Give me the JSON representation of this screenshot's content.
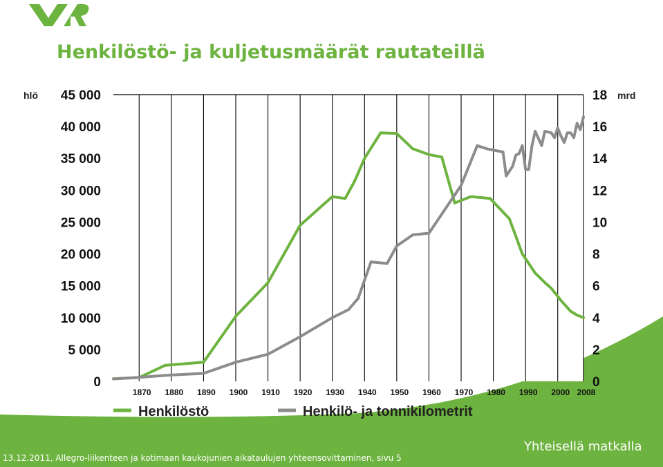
{
  "logo": {
    "text": "VR",
    "color": "#6db33f"
  },
  "slide": {
    "title": "Henkilöstö- ja kuljetusmäärät rautateillä",
    "footer": "13.12.2011, Allegro-liikenteen ja kotimaan kaukojunien aikataulujen yhteensovittaminen, sivu 5",
    "tagline": "Yhteisellä matkalla",
    "accent_color": "#6db33f"
  },
  "chart_data": {
    "type": "line",
    "y_left": {
      "unit": "hlö",
      "range": [
        0,
        45000
      ],
      "ticks": [
        0,
        5000,
        10000,
        15000,
        20000,
        25000,
        30000,
        35000,
        40000,
        45000
      ],
      "tick_labels": [
        "0",
        "5 000",
        "10 000",
        "15 000",
        "20 000",
        "25 000",
        "30 000",
        "35 000",
        "40 000",
        "45 000"
      ]
    },
    "y_right": {
      "unit": "mrd",
      "range": [
        0,
        18
      ],
      "ticks": [
        0,
        2,
        4,
        6,
        8,
        10,
        12,
        14,
        16,
        18
      ],
      "tick_labels": [
        "0",
        "2",
        "4",
        "6",
        "8",
        "10",
        "12",
        "14",
        "16",
        "18"
      ]
    },
    "x_axis": {
      "range": [
        1862,
        2008
      ],
      "ticks": [
        1870,
        1880,
        1890,
        1900,
        1910,
        1920,
        1930,
        1940,
        1950,
        1960,
        1970,
        1980,
        1990,
        2000,
        2008
      ],
      "tick_labels": [
        "1870",
        "1880",
        "1890",
        "1900",
        "1910",
        "1920",
        "1930",
        "1940",
        "1950",
        "1960",
        "1970",
        "1980",
        "1990",
        "2000",
        "2008"
      ]
    },
    "vertical_grid": true,
    "legend_position": "bottom",
    "series": [
      {
        "name": "Henkilöstö",
        "axis": "left",
        "color": "#6db33f",
        "x": [
          1862,
          1870,
          1878,
          1890,
          1900,
          1910,
          1920,
          1930,
          1934,
          1937,
          1940,
          1945,
          1950,
          1955,
          1960,
          1964,
          1968,
          1973,
          1979,
          1985,
          1989,
          1993,
          1996,
          1998,
          2001,
          2004,
          2006,
          2008
        ],
        "values": [
          400,
          600,
          2500,
          3000,
          10200,
          15500,
          24500,
          29000,
          28700,
          31500,
          35000,
          39000,
          38900,
          36500,
          35600,
          35200,
          28000,
          29000,
          28700,
          25500,
          20000,
          17000,
          15500,
          14600,
          12700,
          11000,
          10400,
          10000
        ]
      },
      {
        "name": "Henkilö- ja tonnikilometrit",
        "axis": "right",
        "color": "#8c8c8c",
        "x": [
          1862,
          1870,
          1880,
          1890,
          1900,
          1910,
          1920,
          1930,
          1935,
          1938,
          1942,
          1947,
          1950,
          1955,
          1960,
          1965,
          1970,
          1975,
          1978,
          1983,
          1984,
          1986,
          1987,
          1988,
          1989,
          1990,
          1991,
          1992,
          1993,
          1995,
          1996,
          1998,
          1999,
          2000,
          2001,
          2002,
          2003,
          2004,
          2005,
          2006,
          2007,
          2008
        ],
        "values": [
          0.15,
          0.25,
          0.4,
          0.5,
          1.2,
          1.7,
          2.8,
          4.0,
          4.5,
          5.2,
          7.5,
          7.4,
          8.5,
          9.2,
          9.3,
          10.8,
          12.3,
          14.8,
          14.6,
          14.4,
          12.9,
          13.5,
          14.2,
          14.3,
          14.8,
          13.3,
          13.3,
          14.8,
          15.7,
          14.8,
          15.7,
          15.6,
          15.3,
          15.9,
          15.4,
          15.0,
          15.6,
          15.6,
          15.3,
          16.2,
          15.8,
          16.6
        ]
      }
    ]
  }
}
